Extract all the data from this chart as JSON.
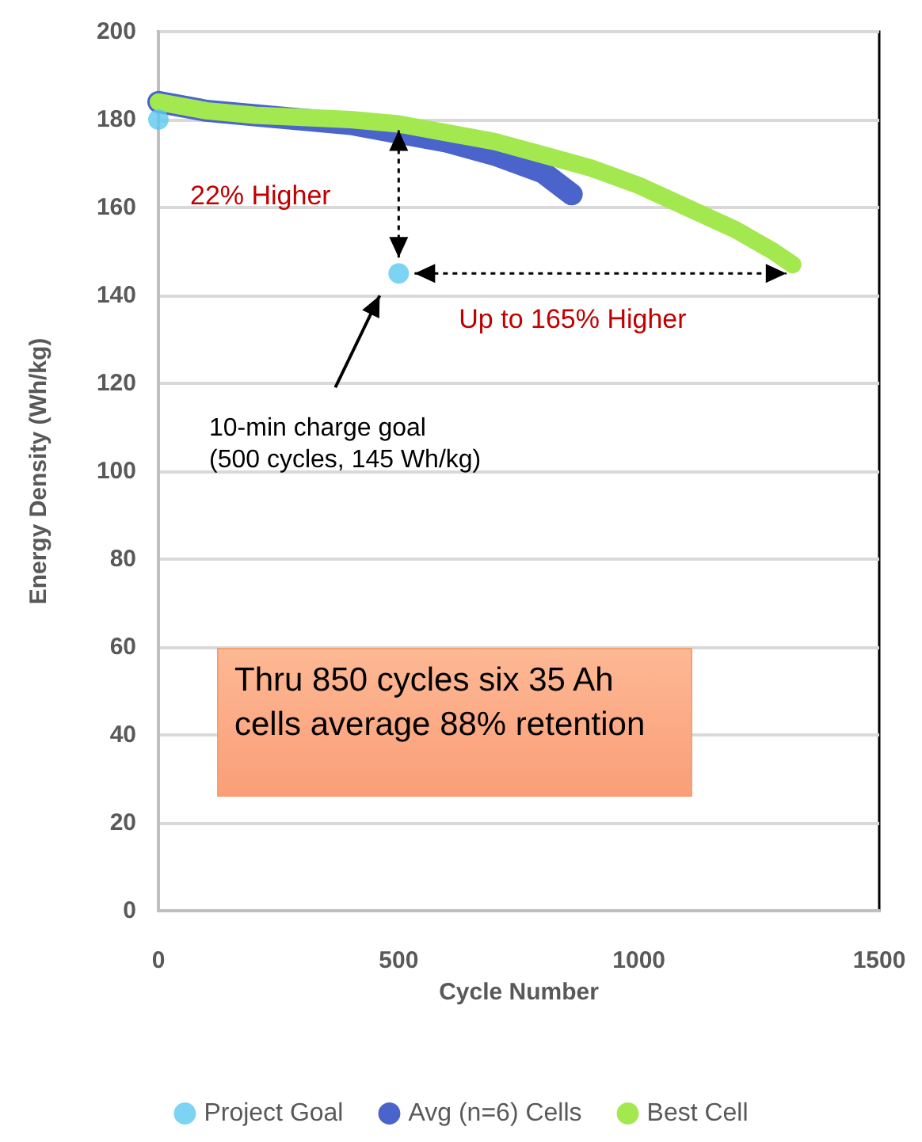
{
  "chart_data": {
    "type": "line",
    "xlabel": "Cycle Number",
    "ylabel": "Energy Density (Wh/kg)",
    "xlim": [
      0,
      1500
    ],
    "xticks": [
      0,
      500,
      1000,
      1500
    ],
    "ylim": [
      0,
      200
    ],
    "yticks": [
      0,
      20,
      40,
      60,
      80,
      100,
      120,
      140,
      160,
      180,
      200
    ],
    "grid": "y",
    "legend": "bottom",
    "line_style": "solid",
    "series": [
      {
        "name": "Project Goal",
        "type": "scatter",
        "marker": "circle",
        "color": "#5bc8f0",
        "x": [
          0,
          500
        ],
        "values": [
          180,
          145
        ]
      },
      {
        "name": "Avg (n=6) Cells",
        "color": "#4a64cc",
        "marker": "none",
        "x": [
          0,
          100,
          200,
          300,
          400,
          500,
          600,
          700,
          800,
          860
        ],
        "values": [
          184,
          182,
          181,
          180,
          179,
          177,
          175,
          172,
          168,
          163
        ]
      },
      {
        "name": "Best Cell",
        "color": "#a3e84e",
        "marker": "none",
        "x": [
          0,
          100,
          200,
          300,
          400,
          500,
          600,
          700,
          800,
          900,
          1000,
          1100,
          1200,
          1280,
          1320
        ],
        "values": [
          184,
          182,
          181,
          180.5,
          180,
          179,
          177,
          175,
          172,
          169,
          165,
          160,
          155,
          150,
          147
        ]
      }
    ],
    "annotations": [
      "22% Higher",
      "Up to 165% Higher",
      "10-min charge goal\n(500 cycles, 145 Wh/kg)",
      "Thru 850 cycles six 35 Ah cells average 88% retention"
    ]
  }
}
